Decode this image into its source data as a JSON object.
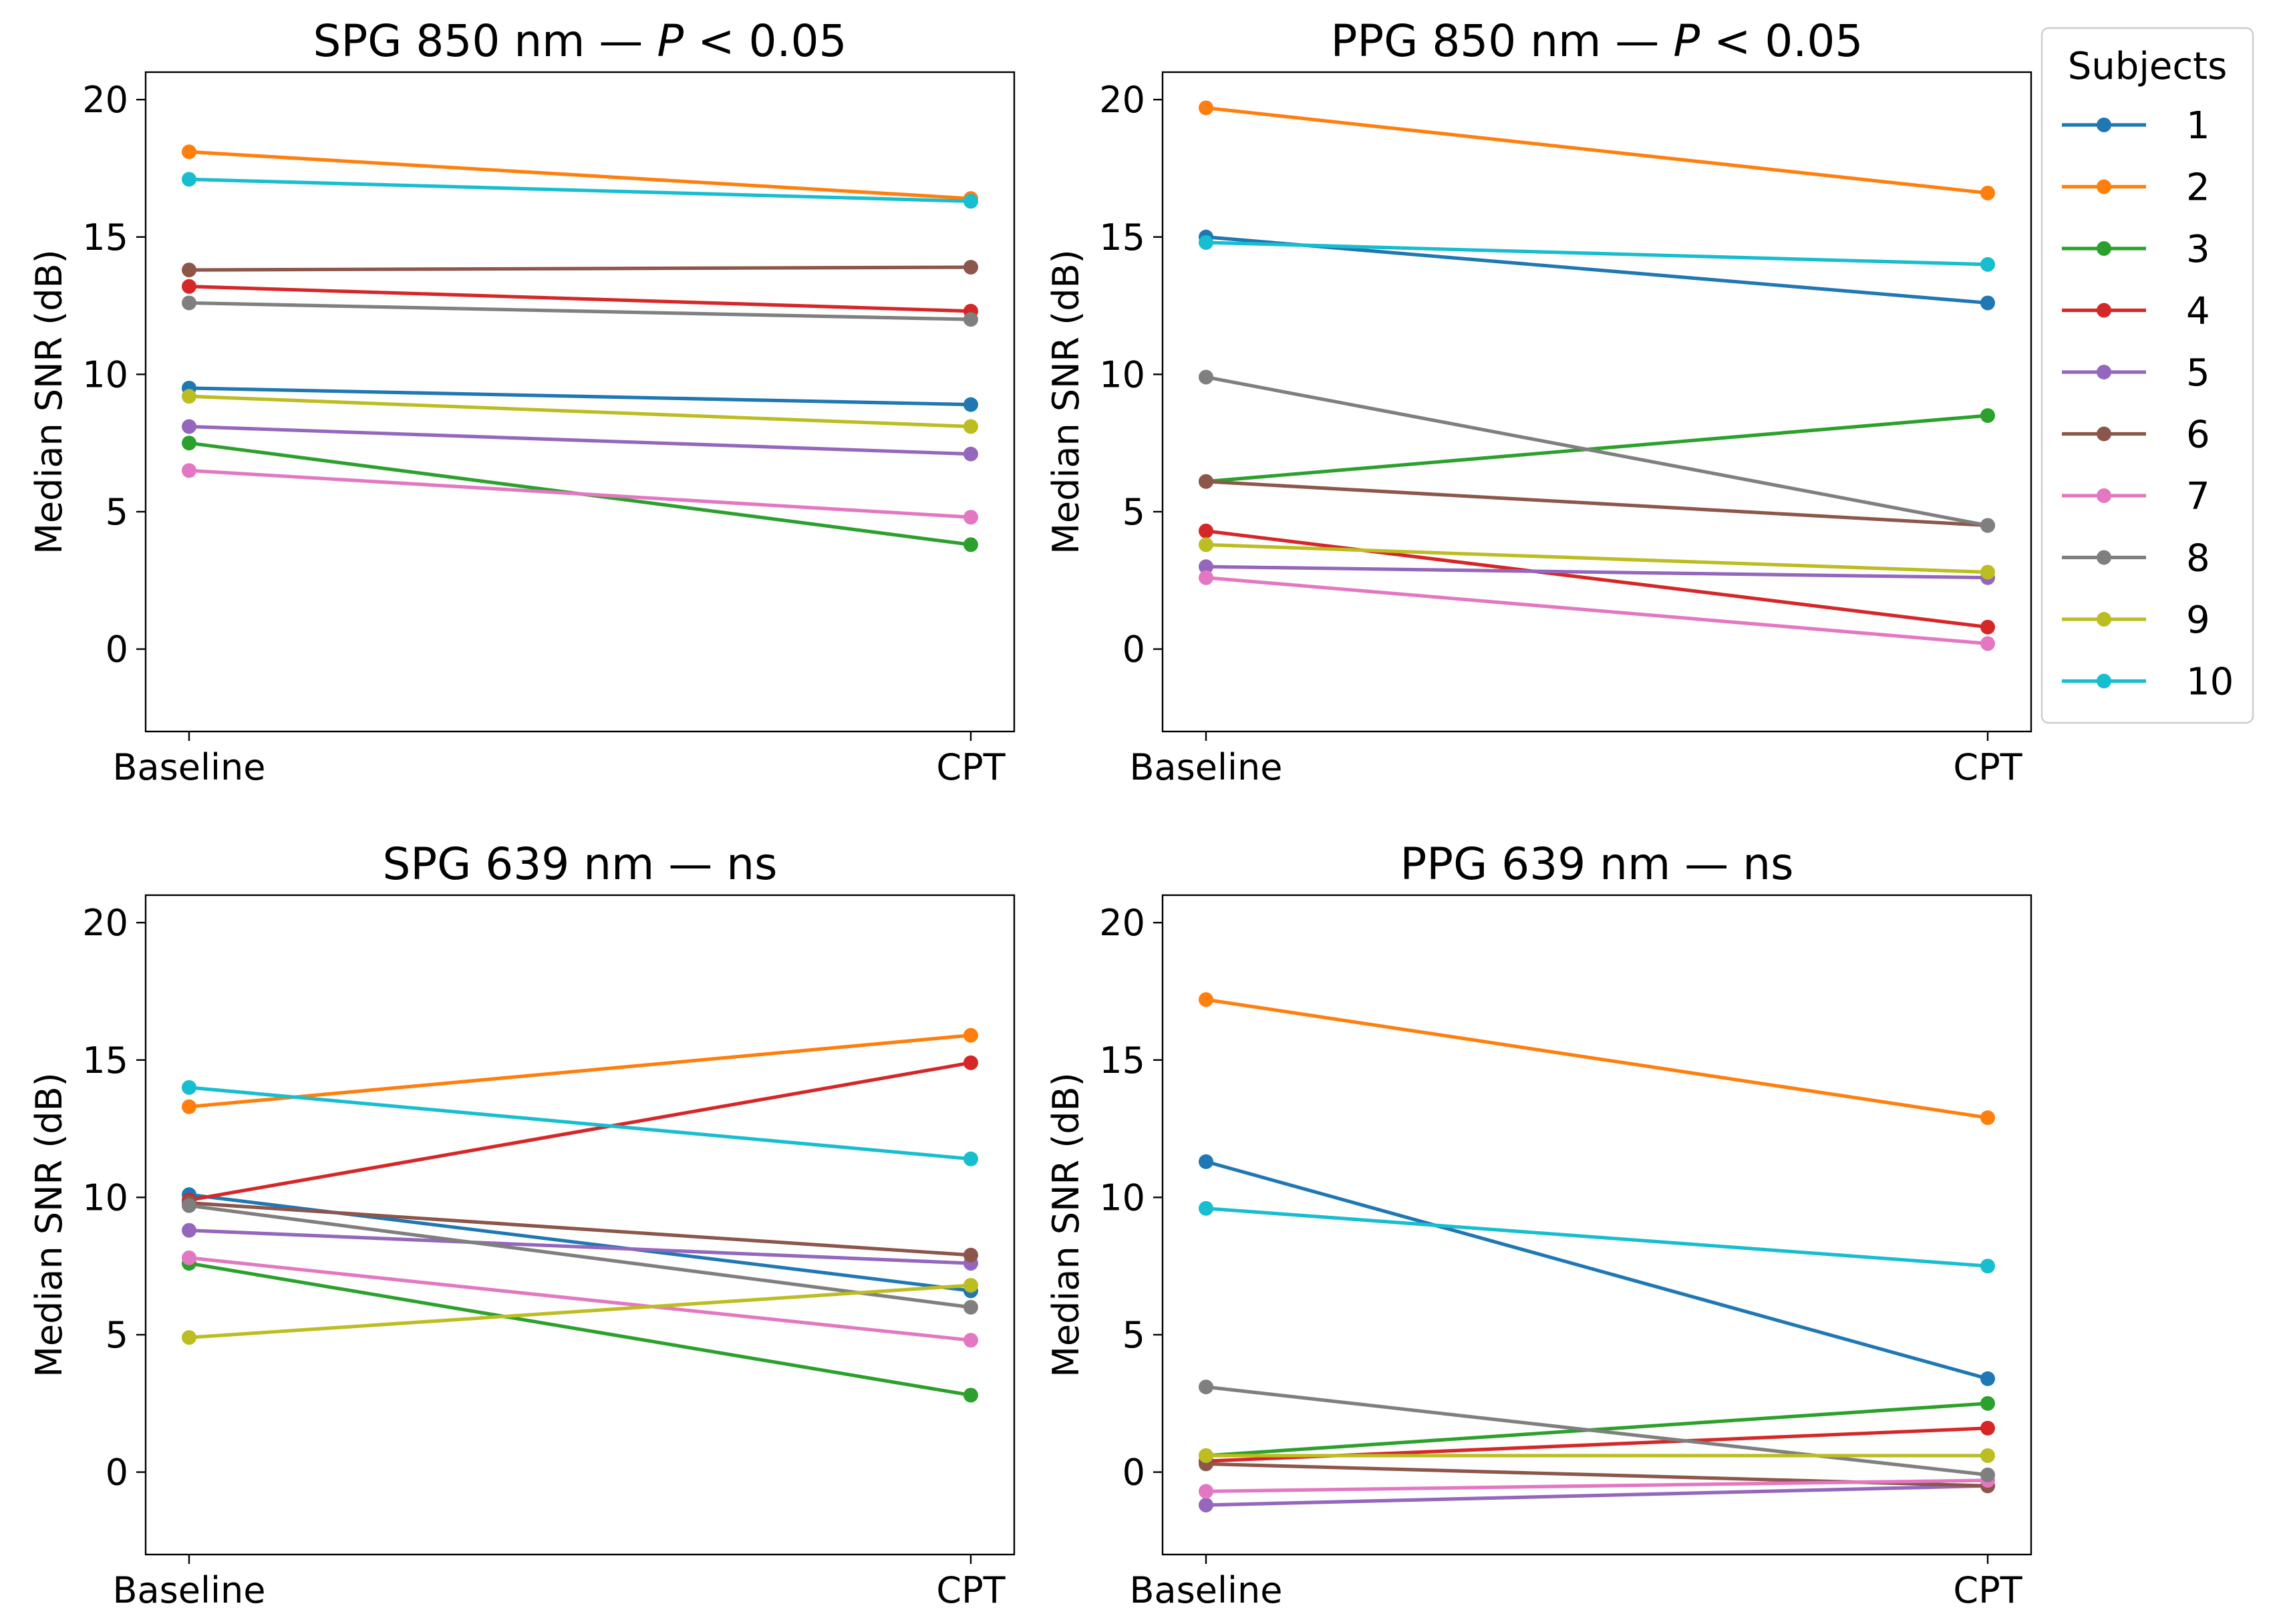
{
  "legend": {
    "title": "Subjects",
    "entries": [
      "1",
      "2",
      "3",
      "4",
      "5",
      "6",
      "7",
      "8",
      "9",
      "10"
    ]
  },
  "colors": [
    "#1f77b4",
    "#ff7f0e",
    "#2ca02c",
    "#d62728",
    "#9467bd",
    "#8c564b",
    "#e377c2",
    "#7f7f7f",
    "#bcbd22",
    "#17becf"
  ],
  "chart_data": [
    {
      "type": "line",
      "title_prefix": "SPG 850 nm — ",
      "title_p": "P",
      "title_suffix": " < 0.05",
      "xlabel": "",
      "ylabel": "Median SNR (dB)",
      "categories": [
        "Baseline",
        "CPT"
      ],
      "ylim": [
        -3,
        21
      ],
      "yticks": [
        0,
        5,
        10,
        15,
        20
      ],
      "series": [
        {
          "name": "1",
          "values": [
            9.5,
            8.9
          ]
        },
        {
          "name": "2",
          "values": [
            18.1,
            16.4
          ]
        },
        {
          "name": "3",
          "values": [
            7.5,
            3.8
          ]
        },
        {
          "name": "4",
          "values": [
            13.2,
            12.3
          ]
        },
        {
          "name": "5",
          "values": [
            8.1,
            7.1
          ]
        },
        {
          "name": "6",
          "values": [
            13.8,
            13.9
          ]
        },
        {
          "name": "7",
          "values": [
            6.5,
            4.8
          ]
        },
        {
          "name": "8",
          "values": [
            12.6,
            12.0
          ]
        },
        {
          "name": "9",
          "values": [
            9.2,
            8.1
          ]
        },
        {
          "name": "10",
          "values": [
            17.1,
            16.3
          ]
        }
      ]
    },
    {
      "type": "line",
      "title_prefix": "PPG 850 nm — ",
      "title_p": "P",
      "title_suffix": " < 0.05",
      "xlabel": "",
      "ylabel": "Median SNR (dB)",
      "categories": [
        "Baseline",
        "CPT"
      ],
      "ylim": [
        -3,
        21
      ],
      "yticks": [
        0,
        5,
        10,
        15,
        20
      ],
      "series": [
        {
          "name": "1",
          "values": [
            15.0,
            12.6
          ]
        },
        {
          "name": "2",
          "values": [
            19.7,
            16.6
          ]
        },
        {
          "name": "3",
          "values": [
            6.1,
            8.5
          ]
        },
        {
          "name": "4",
          "values": [
            4.3,
            0.8
          ]
        },
        {
          "name": "5",
          "values": [
            3.0,
            2.6
          ]
        },
        {
          "name": "6",
          "values": [
            6.1,
            4.5
          ]
        },
        {
          "name": "7",
          "values": [
            2.6,
            0.2
          ]
        },
        {
          "name": "8",
          "values": [
            9.9,
            4.5
          ]
        },
        {
          "name": "9",
          "values": [
            3.8,
            2.8
          ]
        },
        {
          "name": "10",
          "values": [
            14.8,
            14.0
          ]
        }
      ]
    },
    {
      "type": "line",
      "title_prefix": "SPG 639 nm — ns",
      "title_p": "",
      "title_suffix": "",
      "xlabel": "",
      "ylabel": "Median SNR (dB)",
      "categories": [
        "Baseline",
        "CPT"
      ],
      "ylim": [
        -3,
        21
      ],
      "yticks": [
        0,
        5,
        10,
        15,
        20
      ],
      "series": [
        {
          "name": "1",
          "values": [
            10.1,
            6.6
          ]
        },
        {
          "name": "2",
          "values": [
            13.3,
            15.9
          ]
        },
        {
          "name": "3",
          "values": [
            7.6,
            2.8
          ]
        },
        {
          "name": "4",
          "values": [
            9.9,
            14.9
          ]
        },
        {
          "name": "5",
          "values": [
            8.8,
            7.6
          ]
        },
        {
          "name": "6",
          "values": [
            9.8,
            7.9
          ]
        },
        {
          "name": "7",
          "values": [
            7.8,
            4.8
          ]
        },
        {
          "name": "8",
          "values": [
            9.7,
            6.0
          ]
        },
        {
          "name": "9",
          "values": [
            4.9,
            6.8
          ]
        },
        {
          "name": "10",
          "values": [
            14.0,
            11.4
          ]
        }
      ]
    },
    {
      "type": "line",
      "title_prefix": "PPG 639 nm — ns",
      "title_p": "",
      "title_suffix": "",
      "xlabel": "",
      "ylabel": "Median SNR (dB)",
      "categories": [
        "Baseline",
        "CPT"
      ],
      "ylim": [
        -3,
        21
      ],
      "yticks": [
        0,
        5,
        10,
        15,
        20
      ],
      "series": [
        {
          "name": "1",
          "values": [
            11.3,
            3.4
          ]
        },
        {
          "name": "2",
          "values": [
            17.2,
            12.9
          ]
        },
        {
          "name": "3",
          "values": [
            0.6,
            2.5
          ]
        },
        {
          "name": "4",
          "values": [
            0.4,
            1.6
          ]
        },
        {
          "name": "5",
          "values": [
            -1.2,
            -0.5
          ]
        },
        {
          "name": "6",
          "values": [
            0.3,
            -0.5
          ]
        },
        {
          "name": "7",
          "values": [
            -0.7,
            -0.3
          ]
        },
        {
          "name": "8",
          "values": [
            3.1,
            -0.1
          ]
        },
        {
          "name": "9",
          "values": [
            0.6,
            0.6
          ]
        },
        {
          "name": "10",
          "values": [
            9.6,
            7.5
          ]
        }
      ]
    }
  ]
}
